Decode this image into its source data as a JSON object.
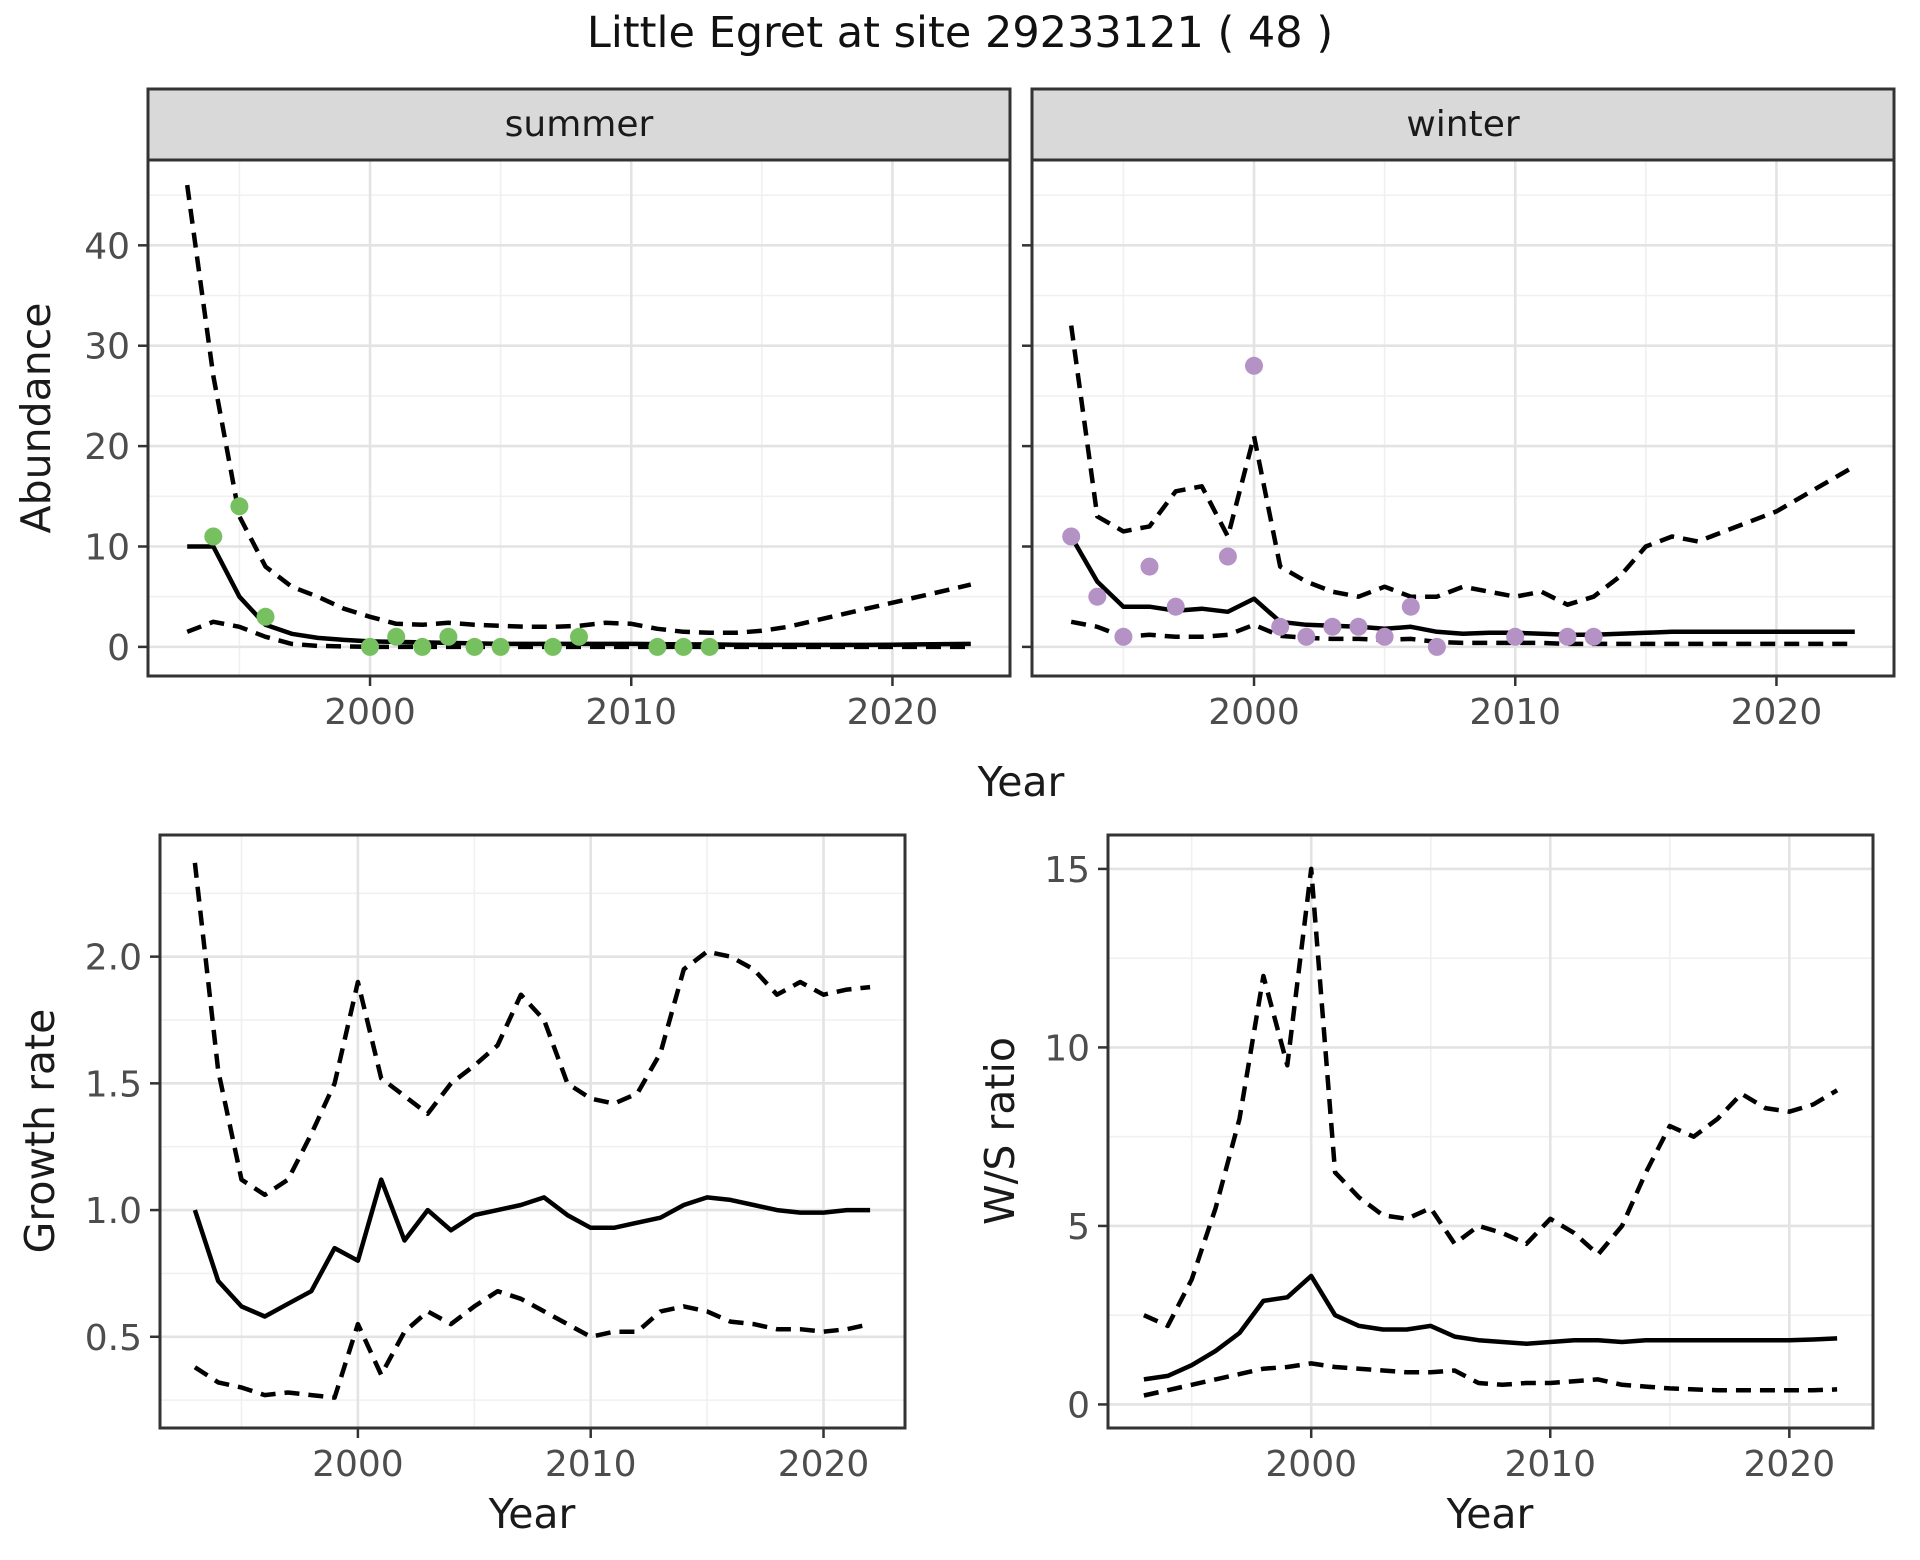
{
  "title": "Little Egret at site 29233121 ( 48 )",
  "axis_titles": {
    "abundance": "Abundance",
    "year": "Year",
    "growth_rate": "Growth rate",
    "ws_ratio": "W/S ratio"
  },
  "colors": {
    "background": "#ffffff",
    "panel_border": "#333333",
    "strip_fill": "#d9d9d9",
    "grid_major": "#e3e3e3",
    "grid_minor": "#f0f0f0",
    "line": "#000000",
    "tick": "#333333",
    "tick_label": "#4d4d4d",
    "summer_point": "#77c05f",
    "winter_point": "#b592c6"
  },
  "chart_data": [
    {
      "name": "abundance-summer",
      "type": "line",
      "facet": "summer",
      "x_axis": {
        "label": "Year",
        "range": [
          1991.5,
          2024.5
        ],
        "major_ticks": [
          2000,
          2010,
          2020
        ],
        "tick_labels": [
          "2000",
          "2010",
          "2020"
        ],
        "minor_ticks": [
          1995,
          2005,
          2015
        ],
        "grid": true
      },
      "y_axis": {
        "label": "Abundance",
        "range": [
          -2.9,
          48.5
        ],
        "major_ticks": [
          0,
          10,
          20,
          30,
          40
        ],
        "tick_labels": [
          "0",
          "10",
          "20",
          "30",
          "40"
        ],
        "minor_ticks": [
          5,
          15,
          25,
          35,
          45
        ],
        "grid": true
      },
      "x": [
        1993,
        1994,
        1995,
        1996,
        1997,
        1998,
        1999,
        2000,
        2001,
        2002,
        2003,
        2004,
        2005,
        2006,
        2007,
        2008,
        2009,
        2010,
        2011,
        2012,
        2013,
        2014,
        2015,
        2016,
        2017,
        2018,
        2019,
        2020,
        2021,
        2022,
        2023
      ],
      "series": [
        {
          "name": "fitted_median",
          "style": "solid",
          "values": [
            10,
            10,
            5,
            2.2,
            1.3,
            0.9,
            0.7,
            0.55,
            0.5,
            0.45,
            0.4,
            0.35,
            0.3,
            0.3,
            0.3,
            0.3,
            0.3,
            0.3,
            0.28,
            0.25,
            0.25,
            0.22,
            0.2,
            0.2,
            0.2,
            0.2,
            0.2,
            0.22,
            0.25,
            0.28,
            0.3
          ]
        },
        {
          "name": "upper_95ci",
          "style": "dashed",
          "values": [
            46,
            27,
            13,
            8,
            6,
            5,
            3.8,
            3,
            2.3,
            2.2,
            2.4,
            2.2,
            2.1,
            2.0,
            2.0,
            2.1,
            2.4,
            2.3,
            1.8,
            1.5,
            1.4,
            1.4,
            1.6,
            2.0,
            2.6,
            3.2,
            3.8,
            4.4,
            5.0,
            5.6,
            6.2
          ]
        },
        {
          "name": "lower_95ci",
          "style": "dashed",
          "values": [
            1.5,
            2.5,
            2.0,
            1.0,
            0.3,
            0.1,
            0.05,
            0,
            0,
            0,
            0,
            0,
            0,
            0,
            0,
            0,
            0,
            0,
            0,
            0,
            0,
            0,
            0,
            0,
            0,
            0,
            0,
            0,
            0,
            0,
            0
          ]
        }
      ],
      "points": {
        "name": "observed-counts",
        "color_key": "summer_point",
        "data": [
          [
            1994,
            11
          ],
          [
            1995,
            14
          ],
          [
            1996,
            3
          ],
          [
            2000,
            0
          ],
          [
            2001,
            1
          ],
          [
            2002,
            0
          ],
          [
            2003,
            1
          ],
          [
            2004,
            0
          ],
          [
            2005,
            0
          ],
          [
            2007,
            0
          ],
          [
            2008,
            1
          ],
          [
            2011,
            0
          ],
          [
            2012,
            0
          ],
          [
            2013,
            0
          ]
        ]
      }
    },
    {
      "name": "abundance-winter",
      "type": "line",
      "facet": "winter",
      "x_axis": {
        "label": "Year",
        "range": [
          1991.5,
          2024.5
        ],
        "major_ticks": [
          2000,
          2010,
          2020
        ],
        "tick_labels": [
          "2000",
          "2010",
          "2020"
        ],
        "minor_ticks": [
          1995,
          2005,
          2015
        ],
        "grid": true
      },
      "y_axis": {
        "label": "Abundance",
        "range": [
          -2.9,
          48.5
        ],
        "major_ticks": [
          0,
          10,
          20,
          30,
          40
        ],
        "tick_labels": [
          "0",
          "10",
          "20",
          "30",
          "40"
        ],
        "minor_ticks": [
          5,
          15,
          25,
          35,
          45
        ],
        "grid": true
      },
      "x": [
        1993,
        1994,
        1995,
        1996,
        1997,
        1998,
        1999,
        2000,
        2001,
        2002,
        2003,
        2004,
        2005,
        2006,
        2007,
        2008,
        2009,
        2010,
        2011,
        2012,
        2013,
        2014,
        2015,
        2016,
        2017,
        2018,
        2019,
        2020,
        2021,
        2022,
        2023
      ],
      "series": [
        {
          "name": "fitted_median",
          "style": "solid",
          "values": [
            11,
            6.5,
            4,
            4,
            3.6,
            3.8,
            3.5,
            4.8,
            2.5,
            2.2,
            2.1,
            2,
            1.8,
            2,
            1.5,
            1.3,
            1.4,
            1.4,
            1.3,
            1.2,
            1.2,
            1.3,
            1.4,
            1.5,
            1.5,
            1.5,
            1.5,
            1.5,
            1.5,
            1.5,
            1.5
          ]
        },
        {
          "name": "upper_95ci",
          "style": "dashed",
          "values": [
            32,
            13,
            11.5,
            12,
            15.5,
            16,
            11,
            21,
            8,
            6.5,
            5.5,
            5,
            6,
            5,
            5,
            6,
            5.5,
            5,
            5.5,
            4.2,
            5,
            7,
            10,
            11,
            10.5,
            11.5,
            12.5,
            13.5,
            15,
            16.5,
            18
          ]
        },
        {
          "name": "lower_95ci",
          "style": "dashed",
          "values": [
            2.5,
            2,
            1,
            1.2,
            1,
            1,
            1.2,
            2.2,
            1.1,
            0.9,
            0.8,
            0.8,
            0.7,
            0.8,
            0.5,
            0.4,
            0.4,
            0.4,
            0.4,
            0.3,
            0.3,
            0.3,
            0.3,
            0.3,
            0.3,
            0.3,
            0.3,
            0.3,
            0.3,
            0.3,
            0.3
          ]
        }
      ],
      "points": {
        "name": "observed-counts",
        "color_key": "winter_point",
        "data": [
          [
            1993,
            11
          ],
          [
            1994,
            5
          ],
          [
            1995,
            1
          ],
          [
            1996,
            8
          ],
          [
            1997,
            4
          ],
          [
            1999,
            9
          ],
          [
            2000,
            28
          ],
          [
            2001,
            2
          ],
          [
            2002,
            1
          ],
          [
            2003,
            2
          ],
          [
            2004,
            2
          ],
          [
            2005,
            1
          ],
          [
            2006,
            4
          ],
          [
            2007,
            0
          ],
          [
            2010,
            1
          ],
          [
            2012,
            1
          ],
          [
            2013,
            1
          ]
        ]
      }
    },
    {
      "name": "growth-rate",
      "type": "line",
      "facet": "",
      "x_axis": {
        "label": "Year",
        "range": [
          1991.5,
          2023.5
        ],
        "major_ticks": [
          2000,
          2010,
          2020
        ],
        "tick_labels": [
          "2000",
          "2010",
          "2020"
        ],
        "minor_ticks": [
          1995,
          2005,
          2015
        ],
        "grid": true
      },
      "y_axis": {
        "label": "Growth rate",
        "range": [
          0.14,
          2.48
        ],
        "major_ticks": [
          0.5,
          1.0,
          1.5,
          2.0
        ],
        "tick_labels": [
          "0.5",
          "1.0",
          "1.5",
          "2.0"
        ],
        "minor_ticks": [
          0.25,
          0.75,
          1.25,
          1.75,
          2.25
        ],
        "grid": true
      },
      "x": [
        1993,
        1994,
        1995,
        1996,
        1997,
        1998,
        1999,
        2000,
        2001,
        2002,
        2003,
        2004,
        2005,
        2006,
        2007,
        2008,
        2009,
        2010,
        2011,
        2012,
        2013,
        2014,
        2015,
        2016,
        2017,
        2018,
        2019,
        2020,
        2021,
        2022
      ],
      "series": [
        {
          "name": "fitted_median",
          "style": "solid",
          "values": [
            1.0,
            0.72,
            0.62,
            0.58,
            0.63,
            0.68,
            0.85,
            0.8,
            1.12,
            0.88,
            1.0,
            0.92,
            0.98,
            1.0,
            1.02,
            1.05,
            0.98,
            0.93,
            0.93,
            0.95,
            0.97,
            1.02,
            1.05,
            1.04,
            1.02,
            1.0,
            0.99,
            0.99,
            1.0,
            1.0
          ]
        },
        {
          "name": "upper_95ci",
          "style": "dashed",
          "values": [
            2.37,
            1.55,
            1.12,
            1.06,
            1.12,
            1.3,
            1.5,
            1.9,
            1.52,
            1.45,
            1.38,
            1.5,
            1.57,
            1.65,
            1.85,
            1.75,
            1.5,
            1.44,
            1.42,
            1.46,
            1.62,
            1.95,
            2.02,
            2.0,
            1.95,
            1.85,
            1.9,
            1.85,
            1.87,
            1.88
          ]
        },
        {
          "name": "lower_95ci",
          "style": "dashed",
          "values": [
            0.38,
            0.32,
            0.3,
            0.27,
            0.28,
            0.27,
            0.26,
            0.55,
            0.35,
            0.52,
            0.6,
            0.55,
            0.62,
            0.68,
            0.65,
            0.6,
            0.55,
            0.5,
            0.52,
            0.52,
            0.6,
            0.62,
            0.6,
            0.56,
            0.55,
            0.53,
            0.53,
            0.52,
            0.53,
            0.55
          ]
        }
      ],
      "points": null
    },
    {
      "name": "ws-ratio",
      "type": "line",
      "facet": "",
      "x_axis": {
        "label": "Year",
        "range": [
          1991.5,
          2023.5
        ],
        "major_ticks": [
          2000,
          2010,
          2020
        ],
        "tick_labels": [
          "2000",
          "2010",
          "2020"
        ],
        "minor_ticks": [
          1995,
          2005,
          2015
        ],
        "grid": true
      },
      "y_axis": {
        "label": "W/S ratio",
        "range": [
          -0.66,
          15.95
        ],
        "major_ticks": [
          0,
          5,
          10,
          15
        ],
        "tick_labels": [
          "0",
          "5",
          "10",
          "15"
        ],
        "minor_ticks": [
          2.5,
          7.5,
          12.5
        ],
        "grid": true
      },
      "x": [
        1993,
        1994,
        1995,
        1996,
        1997,
        1998,
        1999,
        2000,
        2001,
        2002,
        2003,
        2004,
        2005,
        2006,
        2007,
        2008,
        2009,
        2010,
        2011,
        2012,
        2013,
        2014,
        2015,
        2016,
        2017,
        2018,
        2019,
        2020,
        2021,
        2022
      ],
      "series": [
        {
          "name": "fitted_median",
          "style": "solid",
          "values": [
            0.7,
            0.8,
            1.1,
            1.5,
            2.0,
            2.9,
            3.0,
            3.6,
            2.5,
            2.2,
            2.1,
            2.1,
            2.2,
            1.9,
            1.8,
            1.75,
            1.7,
            1.75,
            1.8,
            1.8,
            1.75,
            1.8,
            1.8,
            1.8,
            1.8,
            1.8,
            1.8,
            1.8,
            1.82,
            1.85
          ]
        },
        {
          "name": "upper_95ci",
          "style": "dashed",
          "values": [
            2.5,
            2.2,
            3.5,
            5.5,
            8,
            12,
            9.5,
            15,
            6.5,
            5.8,
            5.3,
            5.2,
            5.5,
            4.5,
            5.0,
            4.8,
            4.5,
            5.2,
            4.8,
            4.2,
            5.0,
            6.5,
            7.8,
            7.5,
            8.0,
            8.7,
            8.3,
            8.2,
            8.4,
            8.8
          ]
        },
        {
          "name": "lower_95ci",
          "style": "dashed",
          "values": [
            0.25,
            0.4,
            0.55,
            0.7,
            0.85,
            1.0,
            1.05,
            1.15,
            1.05,
            1.0,
            0.95,
            0.9,
            0.9,
            0.95,
            0.6,
            0.55,
            0.6,
            0.6,
            0.65,
            0.7,
            0.55,
            0.5,
            0.45,
            0.42,
            0.4,
            0.4,
            0.4,
            0.4,
            0.4,
            0.42
          ]
        }
      ],
      "points": null
    }
  ]
}
